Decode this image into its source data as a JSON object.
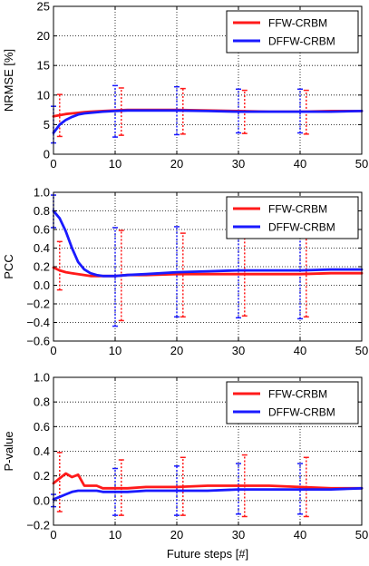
{
  "chart_data": [
    {
      "type": "line",
      "ylabel": "NRMSE [%]",
      "xlabel": "",
      "xlim": [
        0,
        50
      ],
      "ylim": [
        0,
        25
      ],
      "xticks": [
        "0",
        "10",
        "20",
        "30",
        "40",
        "50"
      ],
      "yticks": [
        "0",
        "5",
        "10",
        "15",
        "20",
        "25"
      ],
      "grid": true,
      "legend_position": "top-right",
      "series": [
        {
          "name": "FFW-CRBM",
          "color": "#ff1a1a",
          "x": [
            0,
            1,
            2,
            3,
            4,
            5,
            6,
            8,
            10,
            12,
            15,
            20,
            25,
            30,
            35,
            40,
            45,
            50
          ],
          "y": [
            6.4,
            6.6,
            6.8,
            6.9,
            7.0,
            7.1,
            7.2,
            7.3,
            7.4,
            7.5,
            7.5,
            7.5,
            7.4,
            7.3,
            7.2,
            7.2,
            7.3,
            7.3
          ],
          "errorbars": [
            {
              "x": 1,
              "low": 3.0,
              "high": 10.1
            },
            {
              "x": 11,
              "low": 3.2,
              "high": 11.2
            },
            {
              "x": 21,
              "low": 3.4,
              "high": 11.1
            },
            {
              "x": 31,
              "low": 3.5,
              "high": 10.8
            },
            {
              "x": 41,
              "low": 3.4,
              "high": 10.8
            }
          ]
        },
        {
          "name": "DFFW-CRBM",
          "color": "#1a1aff",
          "x": [
            0,
            0.5,
            1,
            2,
            3,
            4,
            5,
            6,
            8,
            10,
            12,
            15,
            20,
            25,
            30,
            35,
            40,
            45,
            50
          ],
          "y": [
            3.6,
            4.3,
            5.0,
            5.8,
            6.3,
            6.7,
            6.9,
            7.0,
            7.2,
            7.3,
            7.4,
            7.4,
            7.4,
            7.3,
            7.2,
            7.2,
            7.2,
            7.2,
            7.3
          ],
          "errorbars": [
            {
              "x": 0,
              "low": 1.9,
              "high": 8.1
            },
            {
              "x": 10,
              "low": 2.9,
              "high": 11.6
            },
            {
              "x": 20,
              "low": 3.3,
              "high": 11.4
            },
            {
              "x": 30,
              "low": 3.6,
              "high": 11.0
            },
            {
              "x": 40,
              "low": 3.6,
              "high": 11.0
            }
          ]
        }
      ]
    },
    {
      "type": "line",
      "ylabel": "PCC",
      "xlabel": "",
      "xlim": [
        0,
        50
      ],
      "ylim": [
        -0.6,
        1.0
      ],
      "xticks": [
        "0",
        "10",
        "20",
        "30",
        "40",
        "50"
      ],
      "yticks": [
        "−0.6",
        "−0.4",
        "−0.2",
        "0.0",
        "0.2",
        "0.4",
        "0.6",
        "0.8",
        "1.0"
      ],
      "grid": true,
      "legend_position": "top-right",
      "series": [
        {
          "name": "FFW-CRBM",
          "color": "#ff1a1a",
          "x": [
            0,
            1,
            2,
            3,
            4,
            5,
            6,
            8,
            10,
            12,
            15,
            20,
            25,
            30,
            35,
            40,
            45,
            50
          ],
          "y": [
            0.19,
            0.16,
            0.14,
            0.13,
            0.12,
            0.11,
            0.1,
            0.1,
            0.1,
            0.11,
            0.11,
            0.12,
            0.12,
            0.12,
            0.12,
            0.12,
            0.13,
            0.13
          ],
          "errorbars": [
            {
              "x": 1,
              "low": -0.05,
              "high": 0.47
            },
            {
              "x": 11,
              "low": -0.38,
              "high": 0.59
            },
            {
              "x": 21,
              "low": -0.34,
              "high": 0.56
            },
            {
              "x": 31,
              "low": -0.33,
              "high": 0.56
            },
            {
              "x": 41,
              "low": -0.34,
              "high": 0.55
            }
          ]
        },
        {
          "name": "DFFW-CRBM",
          "color": "#1a1aff",
          "x": [
            0,
            1,
            2,
            3,
            4,
            5,
            6,
            7,
            8,
            10,
            12,
            15,
            20,
            25,
            30,
            35,
            40,
            45,
            50
          ],
          "y": [
            0.8,
            0.72,
            0.58,
            0.4,
            0.25,
            0.17,
            0.13,
            0.11,
            0.1,
            0.1,
            0.11,
            0.12,
            0.14,
            0.15,
            0.16,
            0.16,
            0.16,
            0.17,
            0.17
          ],
          "errorbars": [
            {
              "x": 0,
              "low": 0.62,
              "high": 0.97
            },
            {
              "x": 10,
              "low": -0.44,
              "high": 0.62
            },
            {
              "x": 20,
              "low": -0.34,
              "high": 0.63
            },
            {
              "x": 30,
              "low": -0.35,
              "high": 0.61
            },
            {
              "x": 40,
              "low": -0.36,
              "high": 0.6
            }
          ]
        }
      ]
    },
    {
      "type": "line",
      "ylabel": "P-value",
      "xlabel": "Future steps [#]",
      "xlim": [
        0,
        50
      ],
      "ylim": [
        -0.2,
        1.0
      ],
      "xticks": [
        "0",
        "10",
        "20",
        "30",
        "40",
        "50"
      ],
      "yticks": [
        "−0.2",
        "0.0",
        "0.2",
        "0.4",
        "0.6",
        "0.8",
        "1.0"
      ],
      "grid": true,
      "legend_position": "top-right",
      "series": [
        {
          "name": "FFW-CRBM",
          "color": "#ff1a1a",
          "x": [
            0,
            1,
            2,
            3,
            4,
            5,
            6,
            7,
            8,
            9,
            10,
            12,
            15,
            20,
            25,
            28,
            30,
            35,
            40,
            45,
            50
          ],
          "y": [
            0.14,
            0.18,
            0.22,
            0.19,
            0.21,
            0.12,
            0.12,
            0.12,
            0.1,
            0.1,
            0.1,
            0.1,
            0.11,
            0.11,
            0.12,
            0.12,
            0.12,
            0.12,
            0.11,
            0.1,
            0.1
          ],
          "errorbars": [
            {
              "x": 1,
              "low": -0.09,
              "high": 0.39
            },
            {
              "x": 11,
              "low": -0.12,
              "high": 0.33
            },
            {
              "x": 21,
              "low": -0.12,
              "high": 0.35
            },
            {
              "x": 31,
              "low": -0.13,
              "high": 0.37
            },
            {
              "x": 41,
              "low": -0.13,
              "high": 0.35
            }
          ]
        },
        {
          "name": "DFFW-CRBM",
          "color": "#1a1aff",
          "x": [
            0,
            1,
            2,
            3,
            4,
            5,
            6,
            7,
            8,
            9,
            10,
            12,
            15,
            20,
            25,
            30,
            35,
            40,
            45,
            50
          ],
          "y": [
            0.01,
            0.03,
            0.05,
            0.07,
            0.08,
            0.08,
            0.08,
            0.08,
            0.07,
            0.07,
            0.07,
            0.07,
            0.08,
            0.08,
            0.08,
            0.09,
            0.09,
            0.09,
            0.09,
            0.1
          ],
          "errorbars": [
            {
              "x": 0,
              "low": -0.05,
              "high": 0.05
            },
            {
              "x": 10,
              "low": -0.12,
              "high": 0.26
            },
            {
              "x": 20,
              "low": -0.12,
              "high": 0.28
            },
            {
              "x": 30,
              "low": -0.11,
              "high": 0.3
            },
            {
              "x": 40,
              "low": -0.11,
              "high": 0.3
            }
          ]
        }
      ]
    }
  ]
}
